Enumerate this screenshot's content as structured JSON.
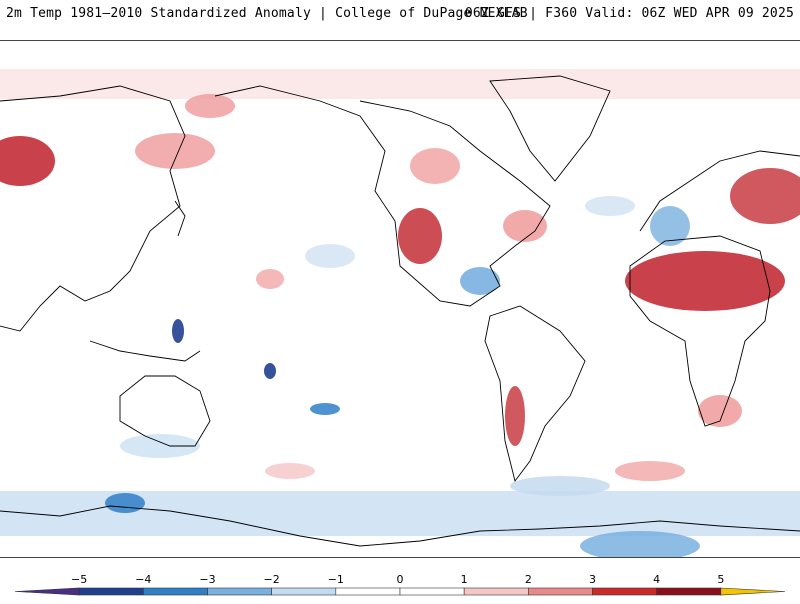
{
  "header": {
    "title_left": "2m Temp 1981–2010 Standardized Anomaly | College of DuPage NEXLAB",
    "title_right": "06Z GFS | F360 Valid: 06Z WED APR 09 2025"
  },
  "colorbar": {
    "ticks": [
      "−5",
      "−4",
      "−3",
      "−2",
      "−1",
      "0",
      "1",
      "2",
      "3",
      "4",
      "5"
    ],
    "colors": [
      "#4b2e83",
      "#1f3f8f",
      "#2f7fc7",
      "#79b0e0",
      "#c3dbf0",
      "#ffffff",
      "#ffffff",
      "#f5c6c6",
      "#e88a8a",
      "#cc2a2a",
      "#8a0f1a",
      "#f5c400"
    ]
  },
  "map": {
    "projection": "global cylindrical, 0° centered on Pacific (date line at center-left)",
    "land_outline_color": "#000000",
    "anomaly_palette": {
      "strong_cold": "#1f3f8f",
      "cold": "#79b0e0",
      "weak_cold": "#d6e6f5",
      "weak_warm": "#f8dede",
      "warm": "#ef9a9a",
      "strong_warm": "#c0202a"
    }
  }
}
